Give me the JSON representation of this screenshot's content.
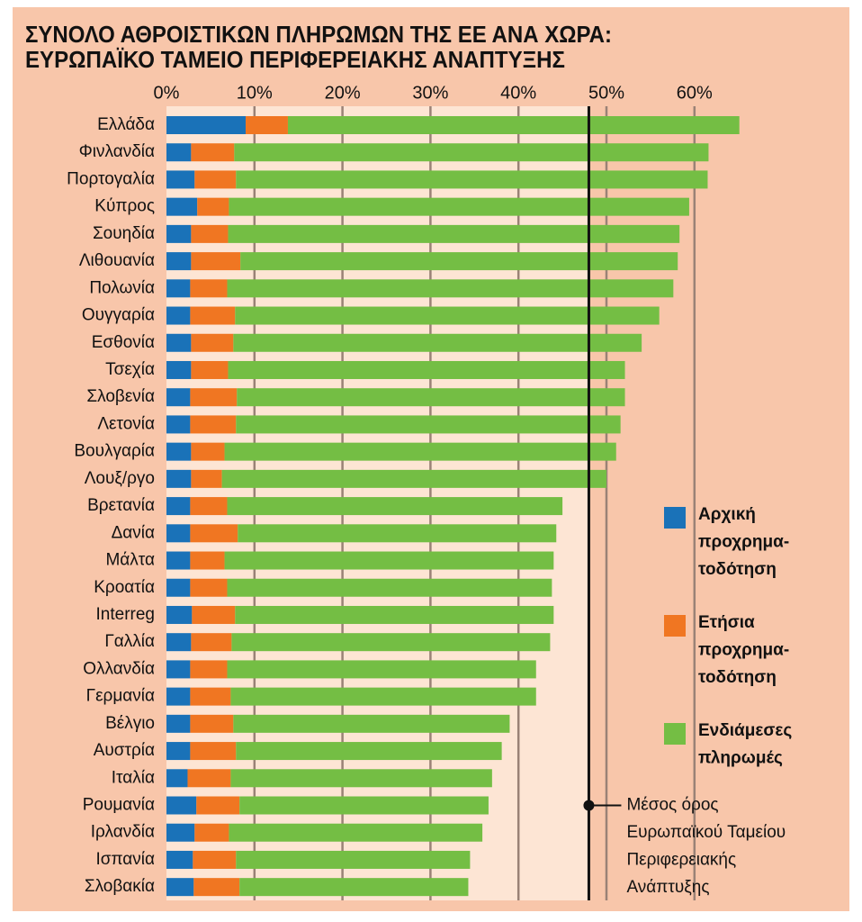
{
  "chart_data": {
    "type": "stacked-bar",
    "orientation": "horizontal",
    "title": "ΣΥΝΟΛΟ ΑΘΡΟΙΣΤΙΚΩΝ ΠΛΗΡΩΜΩΝ ΤΗΣ ΕΕ ΑΝΑ ΧΩΡΑ:",
    "subtitle": "ΕΥΡΩΠΑΪΚΟ ΤΑΜΕΙΟ ΠΕΡΙΦΕΡΕΙΑΚΗΣ ΑΝΑΠΤΥΞΗΣ",
    "categories": [
      "Ελλάδα",
      "Φινλανδία",
      "Πορτογαλία",
      "Κύπρος",
      "Σουηδία",
      "Λιθουανία",
      "Πολωνία",
      "Ουγγαρία",
      "Εσθονία",
      "Τσεχία",
      "Σλοβενία",
      "Λετονία",
      "Βουλγαρία",
      "Λουξ/ργο",
      "Βρετανία",
      "Δανία",
      "Μάλτα",
      "Κροατία",
      "Interreg",
      "Γαλλία",
      "Ολλανδία",
      "Γερμανία",
      "Βέλγιο",
      "Αυστρία",
      "Ιταλία",
      "Ρουμανία",
      "Ιρλανδία",
      "Ισπανία",
      "Σλοβακία"
    ],
    "series": [
      {
        "name": "Αρχική\nπροχρημα-\nτοδότηση",
        "color": "#1a72b8",
        "values": [
          9.0,
          2.8,
          3.2,
          3.5,
          2.8,
          2.8,
          2.7,
          2.7,
          2.8,
          2.8,
          2.7,
          2.7,
          2.8,
          2.8,
          2.7,
          2.7,
          2.7,
          2.7,
          2.9,
          2.8,
          2.7,
          2.7,
          2.7,
          2.7,
          2.4,
          3.4,
          3.2,
          3.0,
          3.1
        ]
      },
      {
        "name": "Ετήσια\nπροχρημα-\nτοδότηση",
        "color": "#f07622",
        "values": [
          4.8,
          4.9,
          4.7,
          3.6,
          4.2,
          5.6,
          4.2,
          5.1,
          4.8,
          4.2,
          5.3,
          5.2,
          3.8,
          3.5,
          4.2,
          5.4,
          3.9,
          4.2,
          4.9,
          4.6,
          4.2,
          4.6,
          4.9,
          5.2,
          4.9,
          4.9,
          3.9,
          4.9,
          5.2
        ]
      },
      {
        "name": "Ενδιάμεσες\nπληρωμές",
        "color": "#74be44",
        "values": [
          51.3,
          53.9,
          53.6,
          52.3,
          51.3,
          49.7,
          50.7,
          48.2,
          46.4,
          45.1,
          44.1,
          43.7,
          44.5,
          43.7,
          38.1,
          36.2,
          37.4,
          36.9,
          36.2,
          36.2,
          35.1,
          34.7,
          31.4,
          30.2,
          29.7,
          28.3,
          28.8,
          26.6,
          26.0
        ]
      }
    ],
    "xlim": [
      0,
      70
    ],
    "xticks": [
      {
        "value": 0,
        "label": "0%"
      },
      {
        "value": 10,
        "label": "10%"
      },
      {
        "value": 20,
        "label": "20%"
      },
      {
        "value": 30,
        "label": "30%"
      },
      {
        "value": 40,
        "label": "40%"
      },
      {
        "value": 50,
        "label": "50%"
      },
      {
        "value": 60,
        "label": "60%"
      }
    ],
    "grid": true,
    "average": {
      "value": 48,
      "label": "Μέσος όρος\nΕυρωπαϊκού Ταμείου\nΠεριφερειακής\nΑνάπτυξης"
    }
  }
}
